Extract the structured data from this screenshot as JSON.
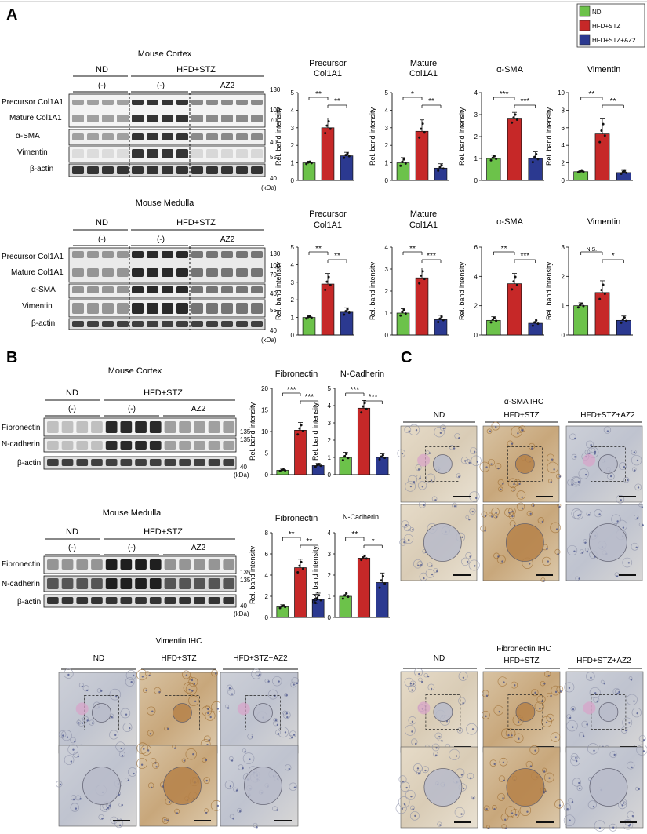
{
  "panels": {
    "A": "A",
    "B": "B",
    "C": "C"
  },
  "legend": [
    {
      "label": "ND",
      "color": "#6cc24a"
    },
    {
      "label": "HFD+STZ",
      "color": "#c62828"
    },
    {
      "label": "HFD+STZ+AZ2",
      "color": "#2b3990"
    }
  ],
  "group_labels": {
    "nd": "ND",
    "hfd": "HFD+STZ",
    "neg": "(-)",
    "az2": "AZ2",
    "kda": "(kDa)"
  },
  "blot_labels": {
    "precursor": "Precursor Col1A1",
    "mature": "Mature Col1A1",
    "sma": "α-SMA",
    "vimentin": "Vimentin",
    "actin": "β-actin",
    "fibronectin": "Fibronectin",
    "ncadherin": "N-cadherin"
  },
  "region_titles": {
    "cortex": "Mouse Cortex",
    "medulla": "Mouse Medulla"
  },
  "ylabel": "Rel. band intensity",
  "chart_data": [
    {
      "id": "a_cortex_precursor",
      "type": "bar",
      "title": "Precursor Col1A1",
      "categories": [
        "ND",
        "HFD+STZ",
        "HFD+STZ+AZ2"
      ],
      "values": [
        1.0,
        3.0,
        1.4
      ],
      "errors": [
        0.1,
        0.55,
        0.2
      ],
      "ylim": [
        0,
        5
      ],
      "yticks": [
        "0",
        "1",
        "2",
        "3",
        "4",
        "5"
      ],
      "significance": [
        "**",
        "**"
      ]
    },
    {
      "id": "a_cortex_mature",
      "type": "bar",
      "title": "Mature Col1A1",
      "categories": [
        "ND",
        "HFD+STZ",
        "HFD+STZ+AZ2"
      ],
      "values": [
        1.0,
        2.8,
        0.7
      ],
      "errors": [
        0.3,
        0.65,
        0.25
      ],
      "ylim": [
        0,
        5
      ],
      "yticks": [
        "0",
        "1",
        "2",
        "3",
        "4",
        "5"
      ],
      "significance": [
        "*",
        "**"
      ]
    },
    {
      "id": "a_cortex_sma",
      "type": "bar",
      "title": "α-SMA",
      "categories": [
        "ND",
        "HFD+STZ",
        "HFD+STZ+AZ2"
      ],
      "values": [
        1.0,
        2.8,
        1.0
      ],
      "errors": [
        0.15,
        0.3,
        0.3
      ],
      "ylim": [
        0,
        4
      ],
      "yticks": [
        "0",
        "1",
        "2",
        "3",
        "4"
      ],
      "significance": [
        "***",
        "***"
      ]
    },
    {
      "id": "a_cortex_vimentin",
      "type": "bar",
      "title": "Vimentin",
      "categories": [
        "ND",
        "HFD+STZ",
        "HFD+STZ+AZ2"
      ],
      "values": [
        1.0,
        5.3,
        0.9
      ],
      "errors": [
        0.1,
        1.7,
        0.25
      ],
      "ylim": [
        0,
        10
      ],
      "yticks": [
        "0",
        "2",
        "4",
        "6",
        "8",
        "10"
      ],
      "significance": [
        "**",
        "**"
      ]
    },
    {
      "id": "a_medulla_precursor",
      "type": "bar",
      "title": "Precursor Col1A1",
      "categories": [
        "ND",
        "HFD+STZ",
        "HFD+STZ+AZ2"
      ],
      "values": [
        1.0,
        2.9,
        1.3
      ],
      "errors": [
        0.1,
        0.6,
        0.25
      ],
      "ylim": [
        0,
        5
      ],
      "yticks": [
        "0",
        "1",
        "2",
        "3",
        "4",
        "5"
      ],
      "significance": [
        "**",
        "**"
      ]
    },
    {
      "id": "a_medulla_mature",
      "type": "bar",
      "title": "Mature Col1A1",
      "categories": [
        "ND",
        "HFD+STZ",
        "HFD+STZ+AZ2"
      ],
      "values": [
        1.0,
        2.6,
        0.7
      ],
      "errors": [
        0.2,
        0.45,
        0.2
      ],
      "ylim": [
        0,
        4
      ],
      "yticks": [
        "0",
        "1",
        "2",
        "3",
        "4"
      ],
      "significance": [
        "**",
        "***"
      ]
    },
    {
      "id": "a_medulla_sma",
      "type": "bar",
      "title": "α-SMA",
      "categories": [
        "ND",
        "HFD+STZ",
        "HFD+STZ+AZ2"
      ],
      "values": [
        1.0,
        3.5,
        0.8
      ],
      "errors": [
        0.25,
        0.7,
        0.3
      ],
      "ylim": [
        0,
        6
      ],
      "yticks": [
        "0",
        "2",
        "4",
        "6"
      ],
      "significance": [
        "**",
        "***"
      ]
    },
    {
      "id": "a_medulla_vimentin",
      "type": "bar",
      "title": "Vimentin",
      "categories": [
        "ND",
        "HFD+STZ",
        "HFD+STZ+AZ2"
      ],
      "values": [
        1.0,
        1.45,
        0.5
      ],
      "errors": [
        0.1,
        0.4,
        0.15
      ],
      "ylim": [
        0,
        3
      ],
      "yticks": [
        "0",
        "1",
        "2",
        "3"
      ],
      "significance": [
        "N.S.",
        "*"
      ]
    },
    {
      "id": "b_cortex_fibronectin",
      "type": "bar",
      "title": "Fibronectin",
      "categories": [
        "ND",
        "HFD+STZ",
        "HFD+STZ+AZ2"
      ],
      "values": [
        1.0,
        10.3,
        2.1
      ],
      "errors": [
        0.3,
        1.8,
        0.5
      ],
      "ylim": [
        0,
        20
      ],
      "yticks": [
        "0",
        "5",
        "10",
        "15",
        "20"
      ],
      "significance": [
        "***",
        "***"
      ]
    },
    {
      "id": "b_cortex_ncadherin",
      "type": "bar",
      "title": "N-Cadherin",
      "categories": [
        "ND",
        "HFD+STZ",
        "HFD+STZ+AZ2"
      ],
      "values": [
        1.0,
        3.85,
        1.0
      ],
      "errors": [
        0.3,
        0.45,
        0.2
      ],
      "ylim": [
        0,
        5
      ],
      "yticks": [
        "0",
        "1",
        "2",
        "3",
        "4",
        "5"
      ],
      "significance": [
        "***",
        "***"
      ]
    },
    {
      "id": "b_medulla_fibronectin",
      "type": "bar",
      "title": "Fibronectin",
      "categories": [
        "ND",
        "HFD+STZ",
        "HFD+STZ+AZ2"
      ],
      "values": [
        1.0,
        4.7,
        1.7
      ],
      "errors": [
        0.2,
        0.8,
        0.6
      ],
      "ylim": [
        0,
        8
      ],
      "yticks": [
        "0",
        "2",
        "4",
        "6",
        "8"
      ],
      "significance": [
        "**",
        "**"
      ]
    },
    {
      "id": "b_medulla_ncadherin",
      "type": "bar",
      "title": "N-Cadherin",
      "categories": [
        "ND",
        "HFD+STZ",
        "HFD+STZ+AZ2"
      ],
      "values": [
        1.0,
        2.8,
        1.65
      ],
      "errors": [
        0.2,
        0.15,
        0.45
      ],
      "ylim": [
        0,
        4
      ],
      "yticks": [
        "0",
        "1",
        "2",
        "3",
        "4"
      ],
      "significance": [
        "**",
        "*"
      ]
    }
  ],
  "ihc": {
    "sma_title": "α-SMA IHC",
    "vimentin_title": "Vimentin IHC",
    "fibronectin_title": "Fibronectin IHC",
    "groups": [
      "ND",
      "HFD+STZ",
      "HFD+STZ+AZ2"
    ]
  }
}
